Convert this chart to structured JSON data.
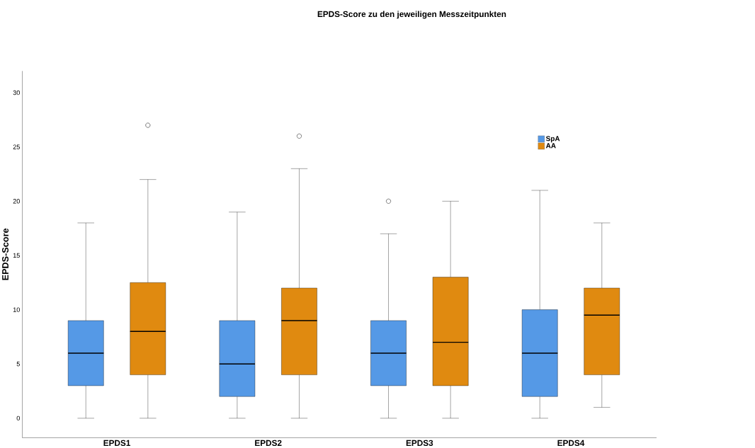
{
  "chart_data": {
    "type": "box",
    "title": "EPDS-Score zu den jeweiligen Messzeitpunkten",
    "ylabel": "EPDS-Score",
    "categories": [
      "EPDS1",
      "EPDS2",
      "EPDS3",
      "EPDS4"
    ],
    "series": [
      {
        "name": "SpA",
        "color": "#5599e6",
        "boxes": [
          {
            "low": 0,
            "q1": 3,
            "median": 6,
            "q3": 9,
            "high": 18
          },
          {
            "low": 0,
            "q1": 2,
            "median": 5,
            "q3": 9,
            "high": 19
          },
          {
            "low": 0,
            "q1": 3,
            "median": 6,
            "q3": 9,
            "high": 17,
            "outliers": [
              20
            ]
          },
          {
            "low": 0,
            "q1": 2,
            "median": 6,
            "q3": 10,
            "high": 21
          }
        ]
      },
      {
        "name": "AA",
        "color": "#e08a10",
        "boxes": [
          {
            "low": 0,
            "q1": 4,
            "median": 8,
            "q3": 12.5,
            "high": 22,
            "outliers": [
              27
            ]
          },
          {
            "low": 0,
            "q1": 4,
            "median": 9,
            "q3": 12,
            "high": 23,
            "outliers": [
              26
            ]
          },
          {
            "low": 0,
            "q1": 3,
            "median": 7,
            "q3": 13,
            "high": 20
          },
          {
            "low": 1,
            "q1": 4,
            "median": 9.5,
            "q3": 12,
            "high": 18
          }
        ]
      }
    ],
    "ylim": [
      -1.8,
      32
    ],
    "yticks": [
      0,
      5,
      10,
      15,
      20,
      25,
      30
    ],
    "legend": "top right",
    "grid": false
  }
}
